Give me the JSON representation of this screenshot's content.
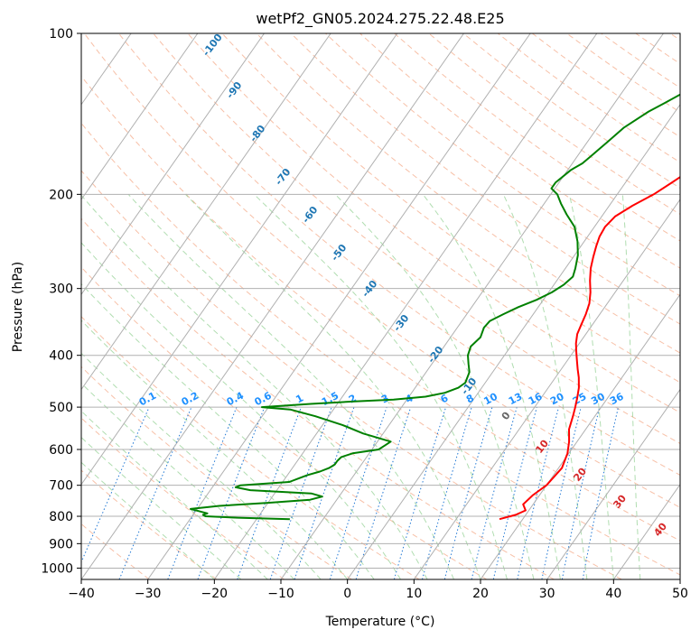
{
  "chart_data": {
    "type": "line",
    "title": "wetPf2_GN05.2024.275.22.48.E25",
    "xlabel": "Temperature (°C)",
    "ylabel": "Pressure (hPa)",
    "xlim": [
      -40,
      50
    ],
    "ylim": [
      1050,
      100
    ],
    "y_scale": "log",
    "grid": true,
    "x_ticks": [
      -40,
      -30,
      -20,
      -10,
      0,
      10,
      20,
      30,
      40,
      50
    ],
    "y_ticks": [
      1000,
      900,
      800,
      700,
      600,
      500,
      400,
      300,
      200,
      100
    ],
    "series": [
      {
        "color": "#ff0000",
        "points": [
          [
            16.5,
            810
          ],
          [
            18.5,
            795
          ],
          [
            19.5,
            780
          ],
          [
            18.5,
            760
          ],
          [
            19.0,
            730
          ],
          [
            20.0,
            700
          ],
          [
            20.2,
            680
          ],
          [
            20.5,
            650
          ],
          [
            19.8,
            610
          ],
          [
            18.8,
            580
          ],
          [
            17.5,
            550
          ],
          [
            16.7,
            520
          ],
          [
            16.1,
            500
          ],
          [
            15.4,
            480
          ],
          [
            14.6,
            460
          ],
          [
            13.5,
            440
          ],
          [
            12.5,
            425
          ],
          [
            11.5,
            410
          ],
          [
            10.5,
            395
          ],
          [
            9.5,
            380
          ],
          [
            8.7,
            365
          ],
          [
            8.3,
            350
          ],
          [
            7.9,
            335
          ],
          [
            7.3,
            320
          ],
          [
            6.3,
            305
          ],
          [
            5.0,
            290
          ],
          [
            3.8,
            275
          ],
          [
            3.0,
            262
          ],
          [
            2.3,
            250
          ],
          [
            1.8,
            240
          ],
          [
            1.6,
            230
          ],
          [
            2.0,
            220
          ],
          [
            3.5,
            210
          ],
          [
            5.5,
            200
          ],
          [
            7.0,
            190
          ],
          [
            8.5,
            180
          ],
          [
            9.2,
            170
          ],
          [
            9.3,
            160
          ],
          [
            9.5,
            150
          ],
          [
            10.3,
            140
          ],
          [
            11.2,
            130
          ],
          [
            11.4,
            125
          ],
          [
            12.0,
            120
          ],
          [
            12.5,
            115
          ],
          [
            13.2,
            110
          ],
          [
            13.5,
            105
          ],
          [
            14.1,
            100
          ]
        ]
      },
      {
        "color": "#008000",
        "points": [
          [
            -15.0,
            810
          ],
          [
            -23.0,
            805
          ],
          [
            -28.0,
            800
          ],
          [
            -28.5,
            795
          ],
          [
            -28.0,
            790
          ],
          [
            -29.0,
            785
          ],
          [
            -31.0,
            775
          ],
          [
            -27.0,
            765
          ],
          [
            -20.0,
            755
          ],
          [
            -14.0,
            745
          ],
          [
            -12.5,
            735
          ],
          [
            -14.5,
            725
          ],
          [
            -24.0,
            715
          ],
          [
            -26.5,
            706
          ],
          [
            -26.0,
            700
          ],
          [
            -19.0,
            690
          ],
          [
            -18.0,
            680
          ],
          [
            -17.0,
            670
          ],
          [
            -15.5,
            660
          ],
          [
            -14.5,
            650
          ],
          [
            -14.0,
            640
          ],
          [
            -14.0,
            630
          ],
          [
            -13.8,
            620
          ],
          [
            -12.5,
            610
          ],
          [
            -9.0,
            600
          ],
          [
            -8.5,
            590
          ],
          [
            -8.0,
            580
          ],
          [
            -13.0,
            560
          ],
          [
            -17.0,
            540
          ],
          [
            -22.0,
            520
          ],
          [
            -26.5,
            505
          ],
          [
            -31.0,
            500
          ],
          [
            -24.0,
            493
          ],
          [
            -18.0,
            488
          ],
          [
            -12.0,
            484
          ],
          [
            -7.5,
            478
          ],
          [
            -5.0,
            470
          ],
          [
            -3.5,
            460
          ],
          [
            -3.0,
            450
          ],
          [
            -3.5,
            430
          ],
          [
            -4.5,
            415
          ],
          [
            -5.5,
            400
          ],
          [
            -6.0,
            385
          ],
          [
            -5.5,
            370
          ],
          [
            -6.0,
            355
          ],
          [
            -5.8,
            345
          ],
          [
            -4.5,
            335
          ],
          [
            -3.0,
            325
          ],
          [
            -1.0,
            315
          ],
          [
            0.5,
            305
          ],
          [
            1.5,
            295
          ],
          [
            2.0,
            285
          ],
          [
            1.5,
            275
          ],
          [
            0.5,
            260
          ],
          [
            -1.0,
            245
          ],
          [
            -3.0,
            230
          ],
          [
            -5.5,
            218
          ],
          [
            -7.5,
            208
          ],
          [
            -9.0,
            200
          ],
          [
            -10.5,
            195
          ],
          [
            -10.5,
            190
          ],
          [
            -9.5,
            180
          ],
          [
            -8.5,
            175
          ],
          [
            -8.0,
            170
          ],
          [
            -7.5,
            165
          ],
          [
            -7.0,
            160
          ],
          [
            -6.0,
            150
          ],
          [
            -4.0,
            140
          ],
          [
            -2.5,
            135
          ],
          [
            -1.0,
            130
          ],
          [
            0.5,
            125
          ],
          [
            1.5,
            120
          ],
          [
            2.5,
            115
          ],
          [
            3.5,
            110
          ],
          [
            4.5,
            105
          ],
          [
            6.0,
            100
          ]
        ]
      }
    ],
    "dry_adiabat_labels": [
      "-100",
      "-90",
      "-80",
      "-70",
      "-60",
      "-50",
      "-40",
      "-30",
      "-20",
      "-10",
      "0",
      "10",
      "20",
      "30",
      "40"
    ],
    "mixing_ratio_labels": [
      "0.1",
      "0.2",
      "0.4",
      "0.6",
      "1",
      "1.5",
      "2",
      "3",
      "4",
      "6",
      "8",
      "10",
      "13",
      "16",
      "20",
      "25",
      "30",
      "36"
    ],
    "colors": {
      "temperature": "#ff0000",
      "dewpoint": "#008000",
      "dry_adiabat_line": "#f4a582",
      "moist_adiabat_line": "#8fcf8f",
      "mixing_ratio_line": "#1f77d4",
      "dry_adiabat_label": "#1f77b4",
      "dry_adiabat_label_warm": "#d62728",
      "mixing_ratio_label": "#1e90ff",
      "grid": "#b0b0b0"
    }
  }
}
